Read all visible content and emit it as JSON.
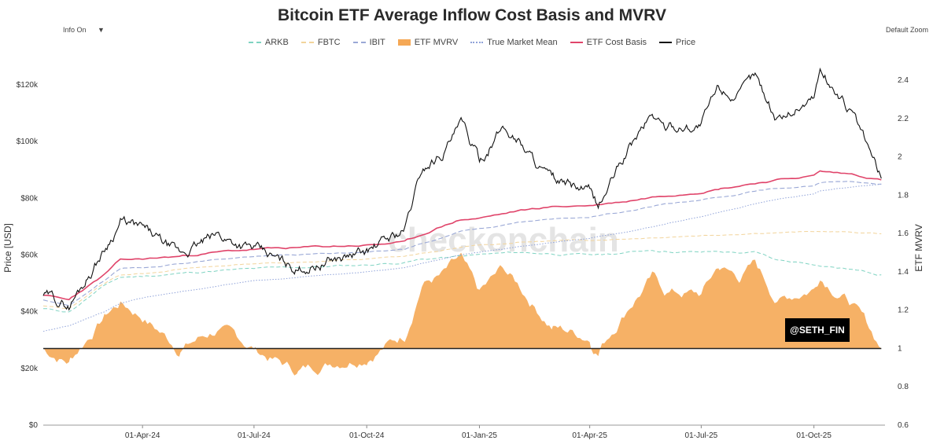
{
  "header": {
    "title": "Bitcoin ETF Average Inflow Cost Basis and MVRV",
    "info_label": "Info On",
    "info_arrow": "▼",
    "zoom_label": "Default Zoom"
  },
  "watermark": "checkonchain",
  "badge": "@SETH_FIN",
  "legend": [
    {
      "name": "ARKB",
      "color": "#7fd3c2",
      "style": "dash"
    },
    {
      "name": "FBTC",
      "color": "#f2d49b",
      "style": "dash"
    },
    {
      "name": "IBIT",
      "color": "#9aa8d6",
      "style": "dash"
    },
    {
      "name": "ETF MVRV",
      "color": "#f5a855",
      "style": "fill"
    },
    {
      "name": "True Market Mean",
      "color": "#8fa2d9",
      "style": "dot"
    },
    {
      "name": "ETF Cost Basis",
      "color": "#e0446a",
      "style": "solid"
    },
    {
      "name": "Price",
      "color": "#111111",
      "style": "solid"
    }
  ],
  "chart_data": {
    "type": "line",
    "title": "Bitcoin ETF Average Inflow Cost Basis and MVRV",
    "ylabel": "Price [USD]",
    "y2label": "ETF MVRV",
    "x_ticks": [
      "01-Apr-24",
      "01-Jul-24",
      "01-Oct-24",
      "01-Jan-25",
      "01-Apr-25",
      "01-Jul-25",
      "01-Oct-25"
    ],
    "y_ticks": [
      "$0",
      "$20k",
      "$40k",
      "$60k",
      "$80k",
      "$100k",
      "$120k"
    ],
    "y2_ticks": [
      "0.6",
      "0.8",
      "1",
      "1.2",
      "1.4",
      "1.6",
      "1.8",
      "2",
      "2.2",
      "2.4"
    ],
    "ylim": [
      0,
      125000
    ],
    "y2lim": [
      0.6,
      2.45
    ],
    "xlim": [
      "2024-01-11",
      "2025-11-28"
    ],
    "mvrv_baseline": 1,
    "dates": [
      "2024-01-11",
      "2024-02-01",
      "2024-03-01",
      "2024-03-14",
      "2024-04-01",
      "2024-05-01",
      "2024-06-01",
      "2024-07-01",
      "2024-08-05",
      "2024-09-01",
      "2024-10-01",
      "2024-11-01",
      "2024-11-15",
      "2024-12-01",
      "2024-12-17",
      "2025-01-01",
      "2025-01-20",
      "2025-02-01",
      "2025-03-01",
      "2025-04-01",
      "2025-04-08",
      "2025-05-01",
      "2025-05-22",
      "2025-06-01",
      "2025-07-01",
      "2025-07-15",
      "2025-08-01",
      "2025-08-14",
      "2025-09-01",
      "2025-10-01",
      "2025-10-06",
      "2025-11-01",
      "2025-11-25"
    ],
    "series": [
      {
        "name": "Price",
        "values": [
          46000,
          42000,
          62000,
          72000,
          69000,
          60000,
          67000,
          62000,
          55000,
          58000,
          61000,
          69000,
          90000,
          96000,
          106000,
          93000,
          105000,
          101000,
          86000,
          82000,
          77000,
          96000,
          110000,
          105000,
          106000,
          119000,
          116000,
          123000,
          108000,
          116000,
          125000,
          110000,
          87000
        ]
      },
      {
        "name": "ETF Cost Basis",
        "values": [
          46000,
          44000,
          53000,
          58000,
          58500,
          59500,
          61000,
          62000,
          62500,
          63000,
          63500,
          64500,
          67000,
          70000,
          72500,
          73000,
          74500,
          75500,
          77000,
          77500,
          77800,
          79000,
          80500,
          81000,
          82500,
          83500,
          84500,
          85500,
          86500,
          88000,
          89500,
          88500,
          86500
        ]
      },
      {
        "name": "True Market Mean",
        "values": [
          33000,
          35000,
          40000,
          43000,
          45000,
          47000,
          49000,
          51000,
          52000,
          53000,
          54000,
          55500,
          57000,
          58500,
          60000,
          61000,
          62000,
          63000,
          64500,
          66000,
          66500,
          68000,
          70000,
          71000,
          73500,
          75000,
          76500,
          78000,
          79500,
          81500,
          82500,
          84000,
          85000
        ]
      },
      {
        "name": "IBIT",
        "values": [
          44000,
          42000,
          51000,
          55000,
          55500,
          57000,
          58500,
          59500,
          60000,
          60500,
          61000,
          62000,
          64000,
          66000,
          68500,
          69500,
          70500,
          71500,
          72500,
          73500,
          74000,
          75500,
          77000,
          78000,
          79500,
          80500,
          81500,
          82500,
          83500,
          84500,
          85500,
          86000,
          85000
        ]
      },
      {
        "name": "FBTC",
        "values": [
          42000,
          41000,
          50000,
          53000,
          53500,
          55000,
          56000,
          57000,
          57500,
          58000,
          58500,
          59500,
          60500,
          61500,
          62500,
          63500,
          64000,
          64500,
          65000,
          65200,
          65400,
          65800,
          66200,
          66400,
          67000,
          67200,
          67500,
          67800,
          68000,
          68200,
          68300,
          68000,
          67500
        ]
      },
      {
        "name": "ARKB",
        "values": [
          41000,
          40000,
          49000,
          52000,
          52500,
          53500,
          54500,
          55000,
          55500,
          56000,
          56500,
          57500,
          58500,
          59000,
          59500,
          60000,
          60500,
          60800,
          60500,
          60000,
          60000,
          60800,
          61800,
          61500,
          61000,
          61200,
          60800,
          61000,
          58000,
          57000,
          56500,
          55000,
          53000
        ]
      },
      {
        "name": "ETF MVRV",
        "values": [
          1.0,
          0.93,
          1.17,
          1.24,
          1.17,
          1.0,
          1.1,
          1.0,
          0.88,
          0.93,
          0.97,
          1.07,
          1.35,
          1.38,
          1.46,
          1.27,
          1.41,
          1.33,
          1.12,
          1.06,
          0.99,
          1.21,
          1.37,
          1.3,
          1.28,
          1.43,
          1.37,
          1.44,
          1.25,
          1.32,
          1.39,
          1.24,
          1.0
        ]
      }
    ]
  }
}
